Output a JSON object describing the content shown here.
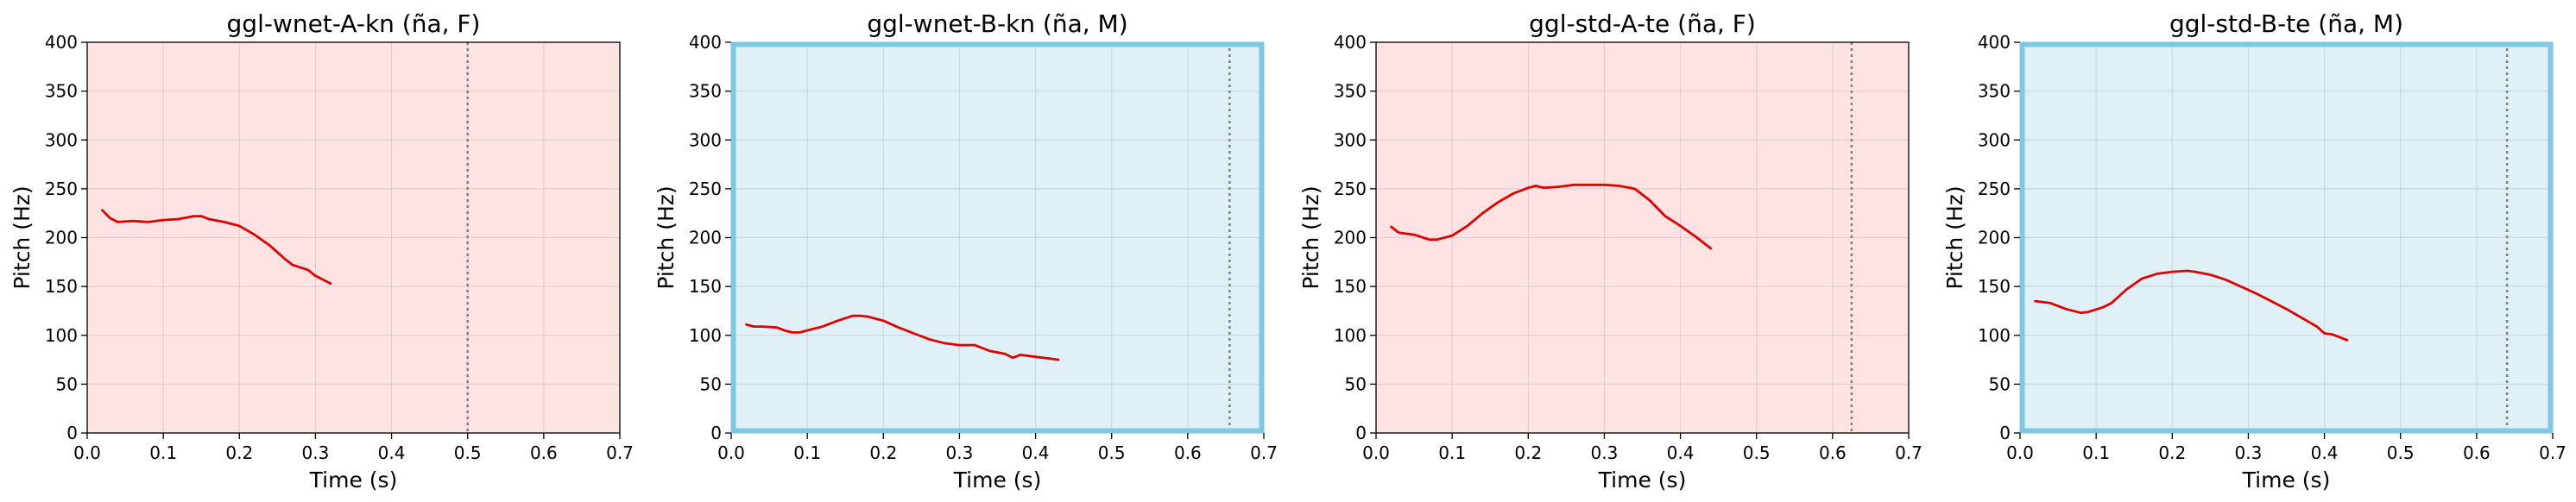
{
  "chart_data": [
    {
      "type": "line",
      "title": "ggl-wnet-A-kn (ña, F)",
      "xlabel": "Time (s)",
      "ylabel": "Pitch (Hz)",
      "xlim": [
        0,
        0.7
      ],
      "ylim": [
        0,
        400
      ],
      "xticks": [
        "0.0",
        "0.1",
        "0.2",
        "0.3",
        "0.4",
        "0.5",
        "0.6",
        "0.7"
      ],
      "yticks": [
        "0",
        "50",
        "100",
        "150",
        "200",
        "250",
        "300",
        "350",
        "400"
      ],
      "grid": true,
      "background": "#ffe3e3",
      "highlight_border": false,
      "vline_x": 0.5,
      "line_color": "#e00000",
      "series": [
        {
          "x": [
            0.02,
            0.03,
            0.04,
            0.06,
            0.08,
            0.1,
            0.12,
            0.14,
            0.15,
            0.16,
            0.18,
            0.2,
            0.22,
            0.24,
            0.26,
            0.27,
            0.29,
            0.3,
            0.32
          ],
          "y": [
            228,
            220,
            216,
            217,
            216,
            218,
            219,
            222,
            222,
            219,
            216,
            212,
            203,
            192,
            178,
            172,
            167,
            161,
            153
          ]
        }
      ]
    },
    {
      "type": "line",
      "title": "ggl-wnet-B-kn (ña, M)",
      "xlabel": "Time (s)",
      "ylabel": "Pitch (Hz)",
      "xlim": [
        0,
        0.7
      ],
      "ylim": [
        0,
        400
      ],
      "xticks": [
        "0.0",
        "0.1",
        "0.2",
        "0.3",
        "0.4",
        "0.5",
        "0.6",
        "0.7"
      ],
      "yticks": [
        "0",
        "50",
        "100",
        "150",
        "200",
        "250",
        "300",
        "350",
        "400"
      ],
      "grid": true,
      "background": "#dff0f7",
      "highlight_border": true,
      "border_color": "#7ec8e3",
      "vline_x": 0.655,
      "line_color": "#e00000",
      "series": [
        {
          "x": [
            0.02,
            0.03,
            0.04,
            0.06,
            0.07,
            0.08,
            0.09,
            0.1,
            0.12,
            0.14,
            0.16,
            0.17,
            0.18,
            0.2,
            0.22,
            0.24,
            0.26,
            0.28,
            0.3,
            0.32,
            0.34,
            0.36,
            0.37,
            0.38,
            0.4,
            0.42,
            0.43
          ],
          "y": [
            111,
            109,
            109,
            108,
            105,
            103,
            103,
            105,
            109,
            115,
            120,
            120,
            119,
            115,
            108,
            102,
            96,
            92,
            90,
            90,
            84,
            81,
            77,
            80,
            78,
            76,
            75
          ]
        }
      ]
    },
    {
      "type": "line",
      "title": "ggl-std-A-te (ña, F)",
      "xlabel": "Time (s)",
      "ylabel": "Pitch (Hz)",
      "xlim": [
        0,
        0.7
      ],
      "ylim": [
        0,
        400
      ],
      "xticks": [
        "0.0",
        "0.1",
        "0.2",
        "0.3",
        "0.4",
        "0.5",
        "0.6",
        "0.7"
      ],
      "yticks": [
        "0",
        "50",
        "100",
        "150",
        "200",
        "250",
        "300",
        "350",
        "400"
      ],
      "grid": true,
      "background": "#ffe3e3",
      "highlight_border": false,
      "vline_x": 0.625,
      "line_color": "#e00000",
      "series": [
        {
          "x": [
            0.02,
            0.03,
            0.05,
            0.07,
            0.08,
            0.1,
            0.12,
            0.14,
            0.16,
            0.18,
            0.2,
            0.21,
            0.22,
            0.24,
            0.26,
            0.28,
            0.3,
            0.32,
            0.34,
            0.36,
            0.38,
            0.4,
            0.42,
            0.44
          ],
          "y": [
            211,
            205,
            203,
            198,
            198,
            202,
            212,
            225,
            236,
            245,
            251,
            253,
            251,
            252,
            254,
            254,
            254,
            253,
            250,
            238,
            222,
            212,
            201,
            189
          ]
        }
      ]
    },
    {
      "type": "line",
      "title": "ggl-std-B-te (ña, M)",
      "xlabel": "Time (s)",
      "ylabel": "Pitch (Hz)",
      "xlim": [
        0,
        0.7
      ],
      "ylim": [
        0,
        400
      ],
      "xticks": [
        "0.0",
        "0.1",
        "0.2",
        "0.3",
        "0.4",
        "0.5",
        "0.6",
        "0.7"
      ],
      "yticks": [
        "0",
        "50",
        "100",
        "150",
        "200",
        "250",
        "300",
        "350",
        "400"
      ],
      "grid": true,
      "background": "#dff0f7",
      "highlight_border": true,
      "border_color": "#7ec8e3",
      "vline_x": 0.64,
      "line_color": "#e00000",
      "series": [
        {
          "x": [
            0.02,
            0.04,
            0.06,
            0.08,
            0.09,
            0.11,
            0.12,
            0.14,
            0.16,
            0.18,
            0.2,
            0.22,
            0.23,
            0.25,
            0.27,
            0.29,
            0.31,
            0.33,
            0.35,
            0.37,
            0.39,
            0.4,
            0.41,
            0.43
          ],
          "y": [
            135,
            133,
            127,
            123,
            124,
            129,
            133,
            147,
            158,
            163,
            165,
            166,
            165,
            162,
            157,
            150,
            143,
            135,
            127,
            118,
            109,
            102,
            101,
            95
          ]
        }
      ]
    }
  ]
}
